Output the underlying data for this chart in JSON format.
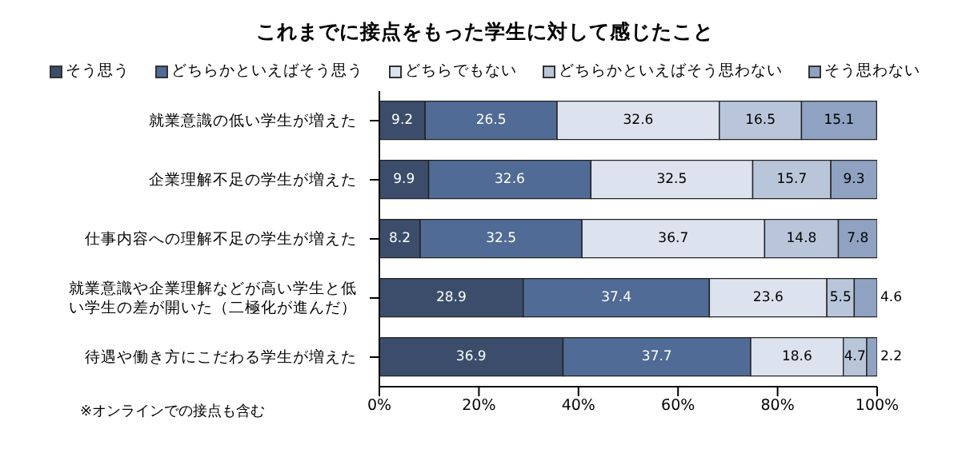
{
  "chart_data": {
    "type": "bar",
    "orientation": "horizontal",
    "stacked": true,
    "title": "これまでに接点をもった学生に対して感じたこと",
    "categories": [
      "就業意識の低い学生が増えた",
      "企業理解不足の学生が増えた",
      "仕事内容への理解不足の学生が増えた",
      "就業意識や企業理解などが高い学生と低い学生の差が開いた（二極化が進んだ）",
      "待遇や働き方にこだわる学生が増えた"
    ],
    "series": [
      {
        "name": "そう思う",
        "color": "#3b4d6b",
        "values": [
          9.2,
          9.9,
          8.2,
          28.9,
          36.9
        ]
      },
      {
        "name": "どちらかといえばそう思う",
        "color": "#506b95",
        "values": [
          26.5,
          32.6,
          32.5,
          37.4,
          37.7
        ]
      },
      {
        "name": "どちらでもない",
        "color": "#dce3ee",
        "values": [
          32.6,
          32.5,
          36.7,
          23.6,
          18.6
        ]
      },
      {
        "name": "どちらかといえばそう思わない",
        "color": "#b9c6da",
        "values": [
          16.5,
          15.7,
          14.8,
          5.5,
          4.7
        ]
      },
      {
        "name": "そう思わない",
        "color": "#8fa2c1",
        "values": [
          15.1,
          9.3,
          7.8,
          4.6,
          2.2
        ]
      }
    ],
    "xlim": [
      0,
      100
    ],
    "xticks": [
      {
        "value": 0,
        "label": "0%"
      },
      {
        "value": 20,
        "label": "20%"
      },
      {
        "value": 40,
        "label": "40%"
      },
      {
        "value": 60,
        "label": "60%"
      },
      {
        "value": 80,
        "label": "80%"
      },
      {
        "value": 100,
        "label": "100%"
      }
    ],
    "data_labels": true,
    "legend": "top",
    "grid": false,
    "annotations": [
      "※オンラインでの接点も含む"
    ]
  }
}
